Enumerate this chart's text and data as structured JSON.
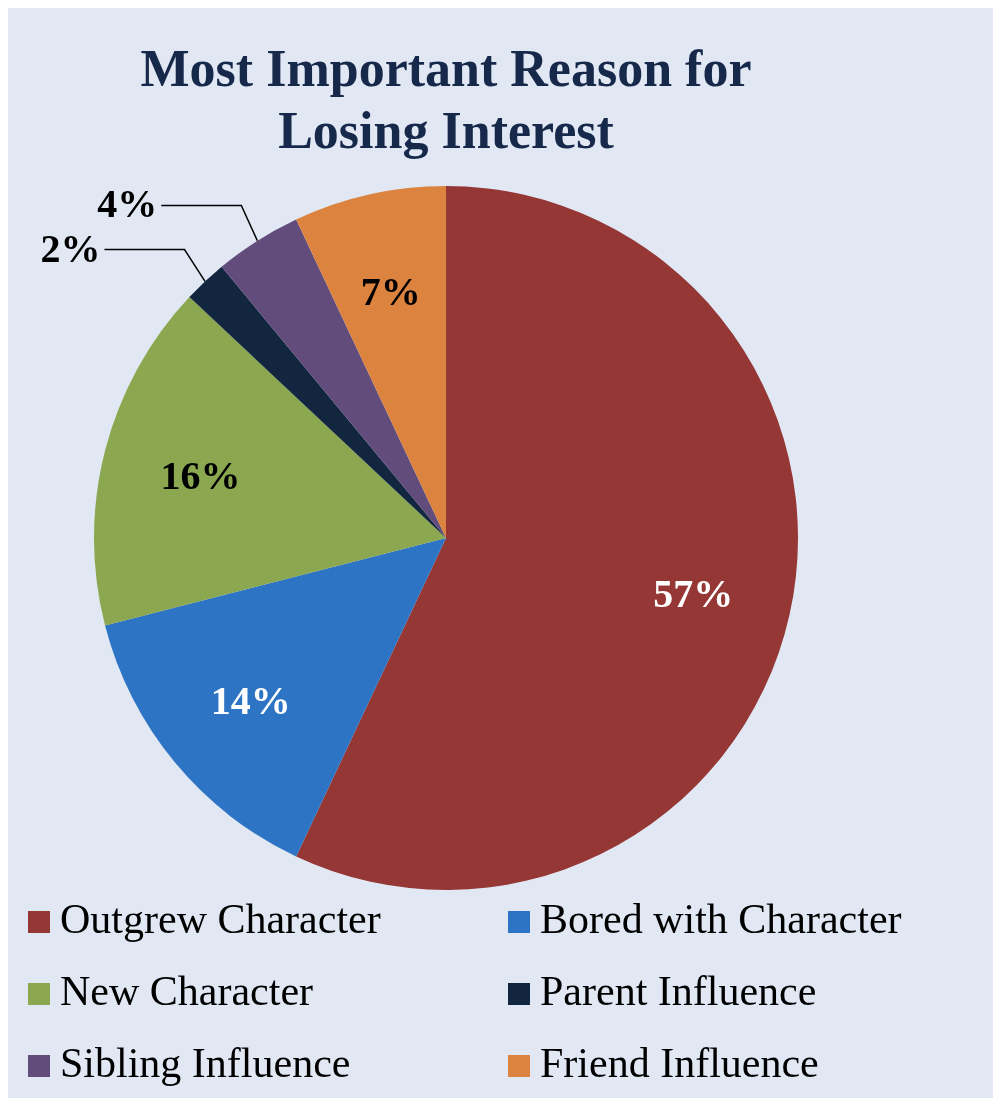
{
  "chart_data": {
    "type": "pie",
    "title": "Most Important Reason for Losing Interest",
    "categories": [
      "Outgrew Character",
      "Bored with Character",
      "New Character",
      "Parent Influence",
      "Sibling Influence",
      "Friend Influence"
    ],
    "values": [
      57,
      14,
      16,
      2,
      4,
      7
    ],
    "colors": [
      "#943735",
      "#2e74c4",
      "#8ba74f",
      "#12263f",
      "#614c7b",
      "#dc843f"
    ],
    "value_labels": [
      "57%",
      "14%",
      "16%",
      "2%",
      "4%",
      "7%"
    ],
    "legend": "bottom"
  }
}
